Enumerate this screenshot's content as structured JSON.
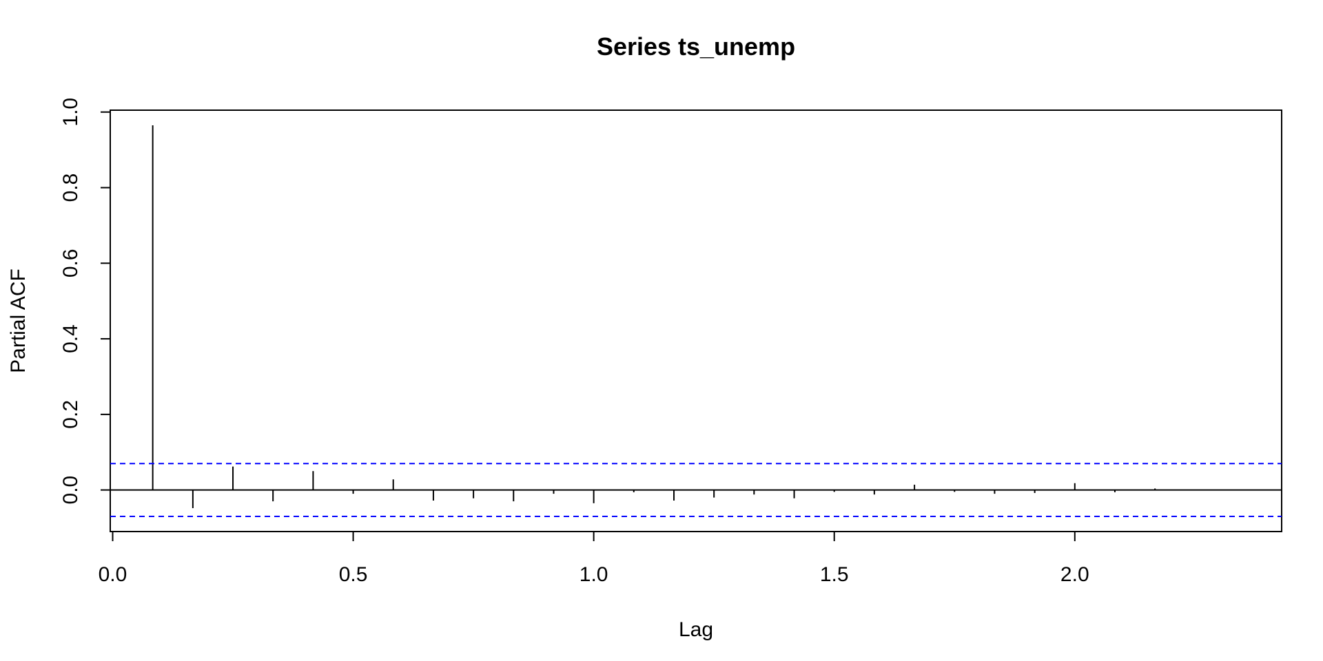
{
  "chart_data": {
    "type": "bar",
    "title": "Series  ts_unemp",
    "xlabel": "Lag",
    "ylabel": "Partial ACF",
    "xlim": [
      -0.005,
      2.43
    ],
    "ylim": [
      -0.11,
      1.005
    ],
    "x_ticks": [
      0.0,
      0.5,
      1.0,
      1.5,
      2.0
    ],
    "x_tick_labels": [
      "0.0",
      "0.5",
      "1.0",
      "1.5",
      "2.0"
    ],
    "y_ticks": [
      0.0,
      0.2,
      0.4,
      0.6,
      0.8,
      1.0
    ],
    "y_tick_labels": [
      "0.0",
      "0.2",
      "0.4",
      "0.6",
      "0.8",
      "1.0"
    ],
    "x": [
      0.0833,
      0.1667,
      0.25,
      0.3333,
      0.4167,
      0.5,
      0.5833,
      0.6667,
      0.75,
      0.8333,
      0.9167,
      1.0,
      1.0833,
      1.1667,
      1.25,
      1.3333,
      1.4167,
      1.5,
      1.5833,
      1.6667,
      1.75,
      1.8333,
      1.9167,
      2.0,
      2.0833,
      2.1667
    ],
    "values": [
      0.965,
      -0.048,
      0.062,
      -0.03,
      0.05,
      -0.01,
      0.028,
      -0.028,
      -0.022,
      -0.03,
      -0.01,
      -0.035,
      -0.006,
      -0.028,
      -0.02,
      -0.012,
      -0.022,
      -0.005,
      -0.012,
      0.014,
      -0.005,
      -0.01,
      -0.008,
      0.018,
      -0.006,
      0.004
    ],
    "confidence_bounds": [
      0.07,
      -0.07
    ],
    "colors": {
      "bars": "#000000",
      "confidence": "#0000ff",
      "zero_line": "#000000"
    },
    "grid": false
  }
}
